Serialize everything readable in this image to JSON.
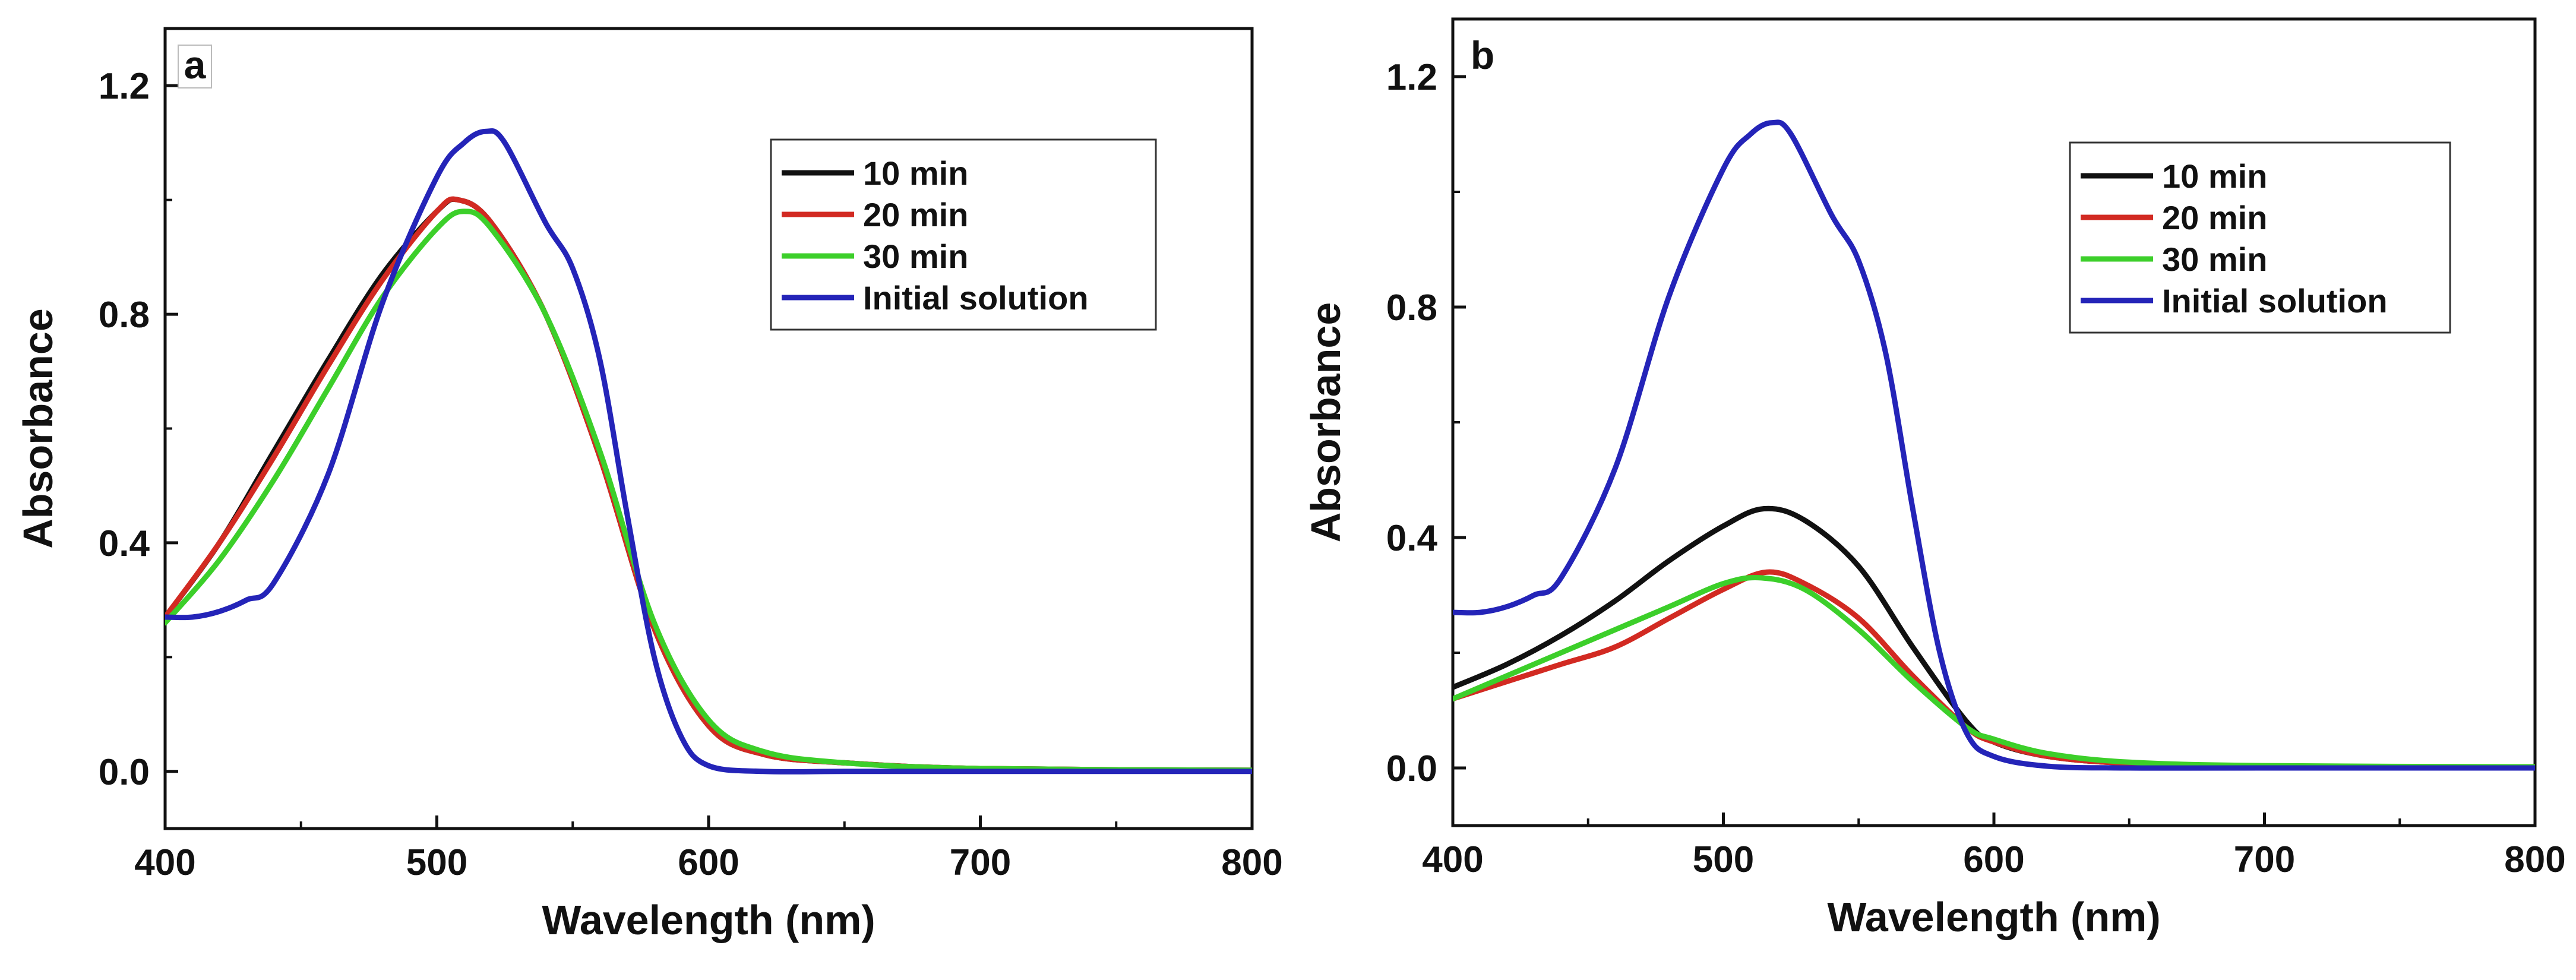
{
  "chart_data": [
    {
      "type": "line",
      "panel_label": "a",
      "xlabel": "Wavelength (nm)",
      "ylabel": "Absorbance",
      "xlim": [
        400,
        800
      ],
      "ylim": [
        -0.1,
        1.3
      ],
      "xticks": [
        "400",
        "500",
        "600",
        "700",
        "800"
      ],
      "yticks": [
        "0.0",
        "0.4",
        "0.8",
        "1.2"
      ],
      "legend_position": "top-right",
      "series": [
        {
          "name": "10 min",
          "color": "#111111",
          "x": [
            400,
            420,
            440,
            460,
            480,
            500,
            508,
            520,
            540,
            560,
            580,
            600,
            620,
            650,
            700,
            800
          ],
          "y": [
            0.27,
            0.4,
            0.56,
            0.72,
            0.87,
            0.98,
            1.0,
            0.96,
            0.8,
            0.55,
            0.25,
            0.08,
            0.03,
            0.015,
            0.005,
            0.002
          ]
        },
        {
          "name": "20 min",
          "color": "#d22a22",
          "x": [
            400,
            420,
            440,
            460,
            480,
            500,
            508,
            520,
            540,
            560,
            580,
            600,
            620,
            650,
            700,
            800
          ],
          "y": [
            0.27,
            0.4,
            0.55,
            0.71,
            0.86,
            0.98,
            1.0,
            0.96,
            0.8,
            0.55,
            0.25,
            0.08,
            0.03,
            0.015,
            0.005,
            0.002
          ]
        },
        {
          "name": "30 min",
          "color": "#3ccf2a",
          "x": [
            400,
            420,
            440,
            460,
            480,
            500,
            510,
            520,
            540,
            560,
            580,
            600,
            620,
            650,
            700,
            800
          ],
          "y": [
            0.26,
            0.37,
            0.51,
            0.67,
            0.83,
            0.95,
            0.98,
            0.95,
            0.8,
            0.56,
            0.26,
            0.09,
            0.035,
            0.015,
            0.005,
            0.002
          ]
        },
        {
          "name": "Initial solution",
          "color": "#2424b8",
          "x": [
            400,
            410,
            420,
            430,
            440,
            460,
            480,
            500,
            510,
            518,
            525,
            540,
            550,
            560,
            570,
            580,
            590,
            600,
            620,
            650,
            700,
            800
          ],
          "y": [
            0.27,
            0.27,
            0.28,
            0.3,
            0.33,
            0.52,
            0.82,
            1.04,
            1.1,
            1.12,
            1.1,
            0.96,
            0.88,
            0.72,
            0.45,
            0.2,
            0.06,
            0.01,
            0.0,
            0.0,
            0.0,
            0.0
          ]
        }
      ]
    },
    {
      "type": "line",
      "panel_label": "b",
      "xlabel": "Wavelength (nm)",
      "ylabel": "Absorbance",
      "xlim": [
        400,
        800
      ],
      "ylim": [
        -0.1,
        1.3
      ],
      "xticks": [
        "400",
        "500",
        "600",
        "700",
        "800"
      ],
      "yticks": [
        "0.0",
        "0.4",
        "0.8",
        "1.2"
      ],
      "legend_position": "top-right",
      "series": [
        {
          "name": "10 min",
          "color": "#111111",
          "x": [
            400,
            420,
            440,
            460,
            480,
            500,
            515,
            530,
            550,
            570,
            590,
            600,
            620,
            650,
            700,
            800
          ],
          "y": [
            0.14,
            0.18,
            0.23,
            0.29,
            0.36,
            0.42,
            0.45,
            0.43,
            0.35,
            0.21,
            0.08,
            0.045,
            0.02,
            0.008,
            0.003,
            0.002
          ]
        },
        {
          "name": "20 min",
          "color": "#d22a22",
          "x": [
            400,
            420,
            440,
            460,
            480,
            500,
            516,
            530,
            550,
            570,
            590,
            600,
            620,
            650,
            700,
            800
          ],
          "y": [
            0.12,
            0.15,
            0.18,
            0.21,
            0.26,
            0.31,
            0.34,
            0.32,
            0.26,
            0.16,
            0.07,
            0.045,
            0.02,
            0.008,
            0.003,
            0.002
          ]
        },
        {
          "name": "30 min",
          "color": "#3ccf2a",
          "x": [
            400,
            420,
            440,
            460,
            480,
            500,
            514,
            530,
            550,
            570,
            590,
            600,
            620,
            650,
            700,
            800
          ],
          "y": [
            0.12,
            0.16,
            0.2,
            0.24,
            0.28,
            0.32,
            0.33,
            0.31,
            0.24,
            0.15,
            0.07,
            0.05,
            0.025,
            0.01,
            0.004,
            0.002
          ]
        },
        {
          "name": "Initial solution",
          "color": "#2424b8",
          "x": [
            400,
            410,
            420,
            430,
            440,
            460,
            480,
            500,
            510,
            518,
            525,
            540,
            550,
            560,
            570,
            580,
            590,
            600,
            620,
            650,
            700,
            800
          ],
          "y": [
            0.27,
            0.27,
            0.28,
            0.3,
            0.33,
            0.52,
            0.82,
            1.04,
            1.1,
            1.12,
            1.1,
            0.96,
            0.88,
            0.72,
            0.45,
            0.2,
            0.06,
            0.02,
            0.003,
            0.0,
            0.0,
            0.0
          ]
        }
      ]
    }
  ]
}
